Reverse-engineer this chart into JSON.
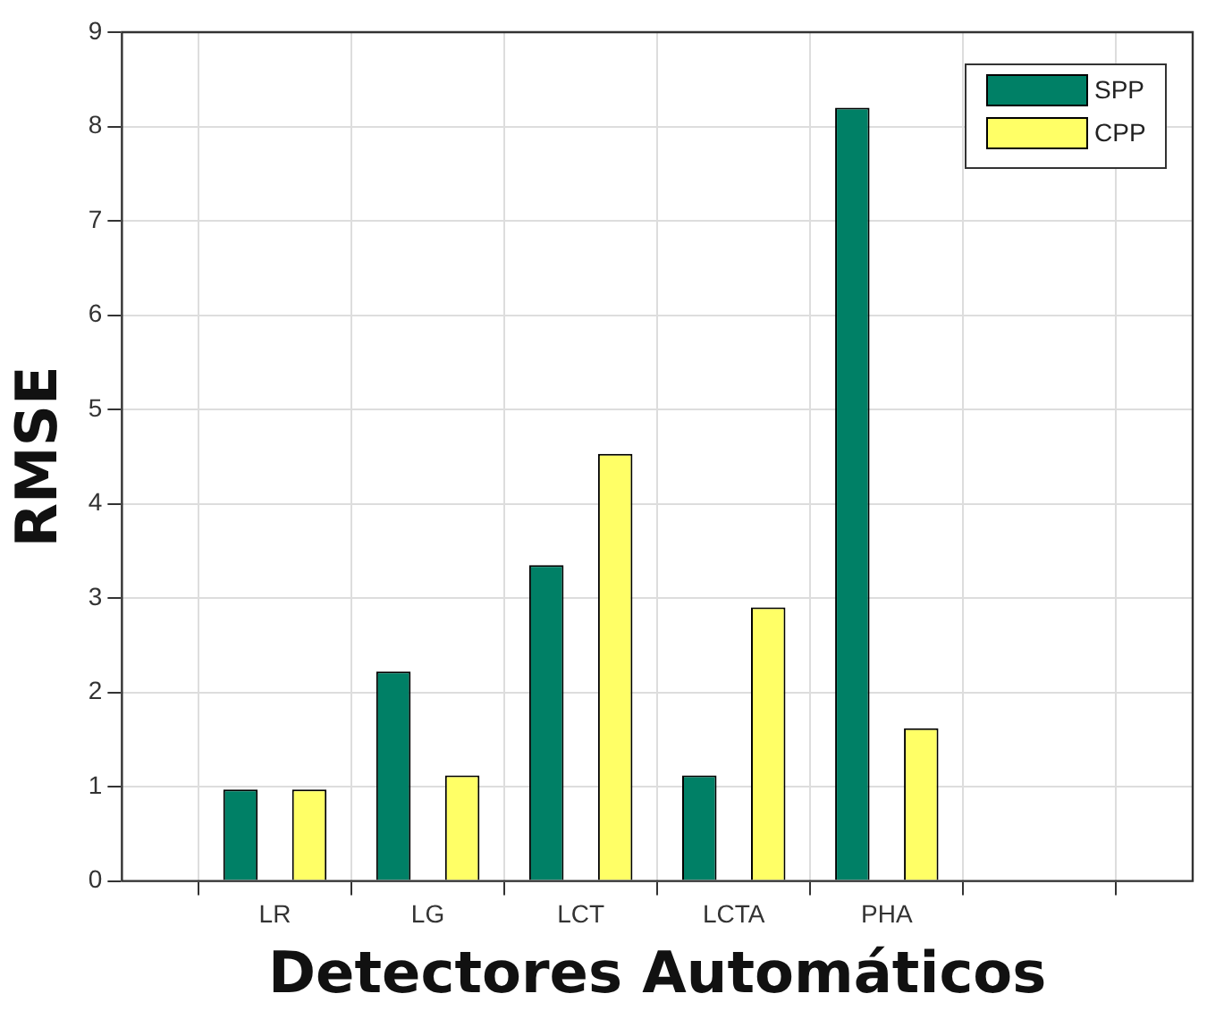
{
  "chart_data": {
    "type": "bar",
    "xlabel": "Detectores Automáticos",
    "ylabel": "RMSE",
    "categories": [
      "LR",
      "LG",
      "LCT",
      "LCTA",
      "PHA",
      null
    ],
    "series": [
      {
        "name": "SPP",
        "color": "#008066",
        "values": [
          0.97,
          2.22,
          3.35,
          1.12,
          8.2,
          null
        ]
      },
      {
        "name": "CPP",
        "color": "#ffff66",
        "values": [
          0.97,
          1.12,
          4.53,
          2.9,
          1.62,
          null
        ]
      }
    ],
    "ylim": [
      0,
      9
    ],
    "yticks": [
      0,
      1,
      2,
      3,
      4,
      5,
      6,
      7,
      8,
      9
    ],
    "grid": true,
    "legend": "top right"
  }
}
